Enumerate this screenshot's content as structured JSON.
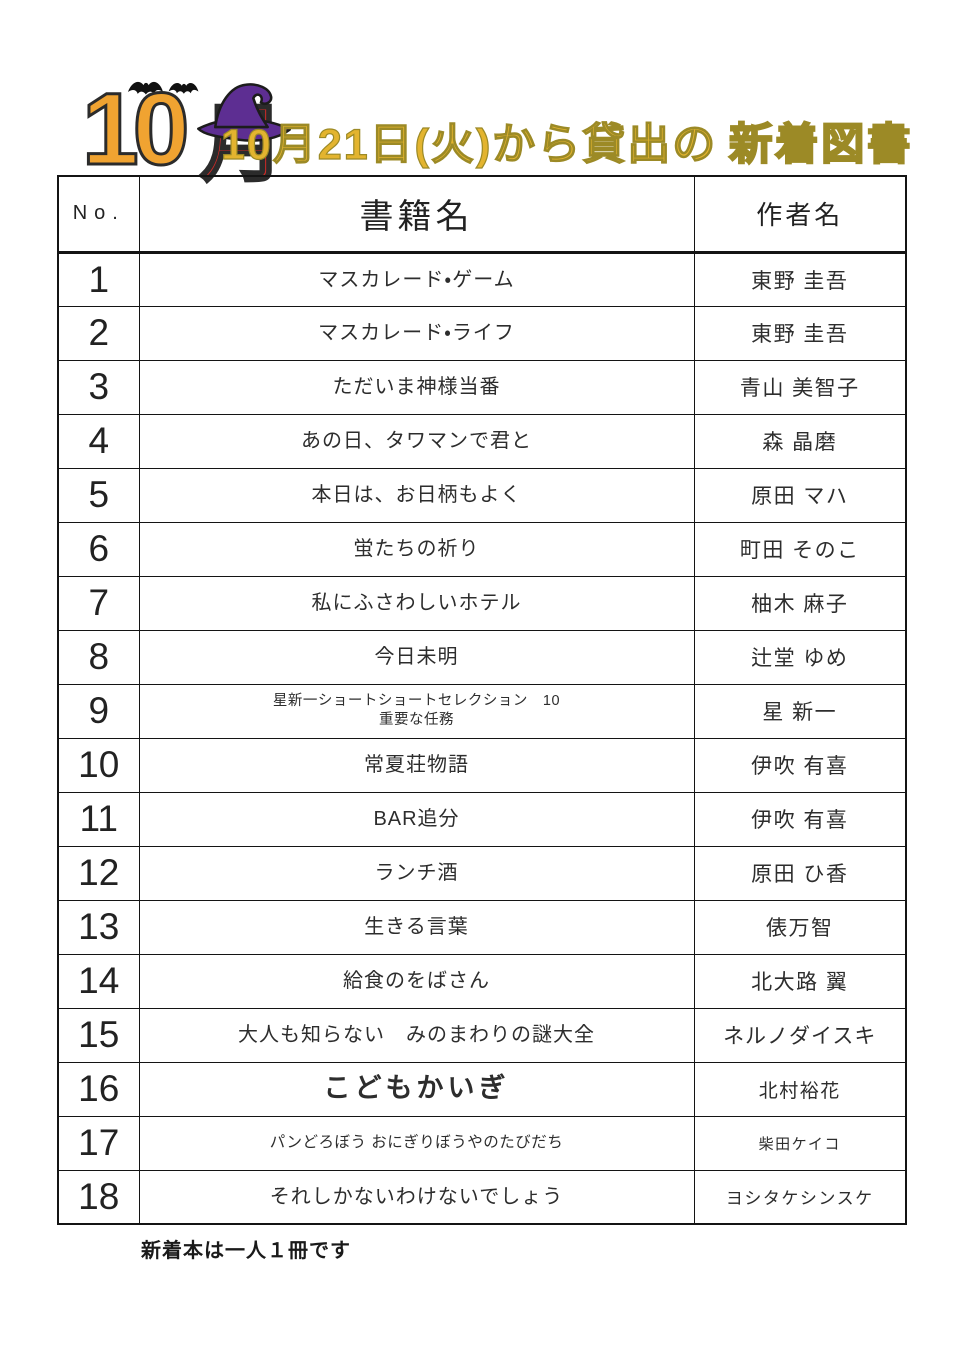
{
  "header": {
    "month_number": "10",
    "month_kanji": "月",
    "title_main": "10月21日(火)から貸出の",
    "title_emphasis": "新着図書",
    "colors": {
      "month_number": "#F0A331",
      "month_kanji": "#CF2A27",
      "witch_hat": "#5D2E92",
      "title_gold": "#E3B42F"
    },
    "icons": [
      "bats-icon",
      "witch-hat-icon"
    ]
  },
  "table": {
    "columns": [
      "No.",
      "書籍名",
      "作者名"
    ],
    "rows": [
      {
        "no": "1",
        "title_lines": [
          "マスカレード・ゲーム"
        ],
        "author": "東野 圭吾"
      },
      {
        "no": "2",
        "title_lines": [
          "マスカレード・ライフ"
        ],
        "author": "東野 圭吾"
      },
      {
        "no": "3",
        "title_lines": [
          "ただいま神様当番"
        ],
        "author": "青山 美智子"
      },
      {
        "no": "4",
        "title_lines": [
          "あの日、タワマンで君と"
        ],
        "author": "森 晶磨"
      },
      {
        "no": "5",
        "title_lines": [
          "本日は、お日柄もよく"
        ],
        "author": "原田 マハ"
      },
      {
        "no": "6",
        "title_lines": [
          "蛍たちの祈り"
        ],
        "author": "町田 そのこ"
      },
      {
        "no": "7",
        "title_lines": [
          "私にふさわしいホテル"
        ],
        "author": "柚木 麻子"
      },
      {
        "no": "8",
        "title_lines": [
          "今日未明"
        ],
        "author": "辻堂 ゆめ"
      },
      {
        "no": "9",
        "title_lines": [
          "星新一ショートショートセレクション　10",
          "重要な任務"
        ],
        "author": "星 新一"
      },
      {
        "no": "10",
        "title_lines": [
          "常夏荘物語"
        ],
        "author": "伊吹 有喜"
      },
      {
        "no": "11",
        "title_lines": [
          "BAR追分"
        ],
        "author": "伊吹 有喜"
      },
      {
        "no": "12",
        "title_lines": [
          "ランチ酒"
        ],
        "author": "原田 ひ香"
      },
      {
        "no": "13",
        "title_lines": [
          "生きる言葉"
        ],
        "author": "俵万智"
      },
      {
        "no": "14",
        "title_lines": [
          "給食のをばさん"
        ],
        "author": "北大路 翼"
      },
      {
        "no": "15",
        "title_lines": [
          "大人も知らない　みのまわりの謎大全"
        ],
        "author": "ネルノダイスキ"
      },
      {
        "no": "16",
        "title_lines": [
          "こどもかいぎ"
        ],
        "author": "北村裕花"
      },
      {
        "no": "17",
        "title_lines": [
          "パンどろぼう おにぎりぼうやのたびだち"
        ],
        "author": "柴田ケイコ"
      },
      {
        "no": "18",
        "title_lines": [
          "それしかないわけないでしょう"
        ],
        "author": "ヨシタケシンスケ"
      }
    ]
  },
  "footer": {
    "note": "新着本は一人１冊です"
  }
}
